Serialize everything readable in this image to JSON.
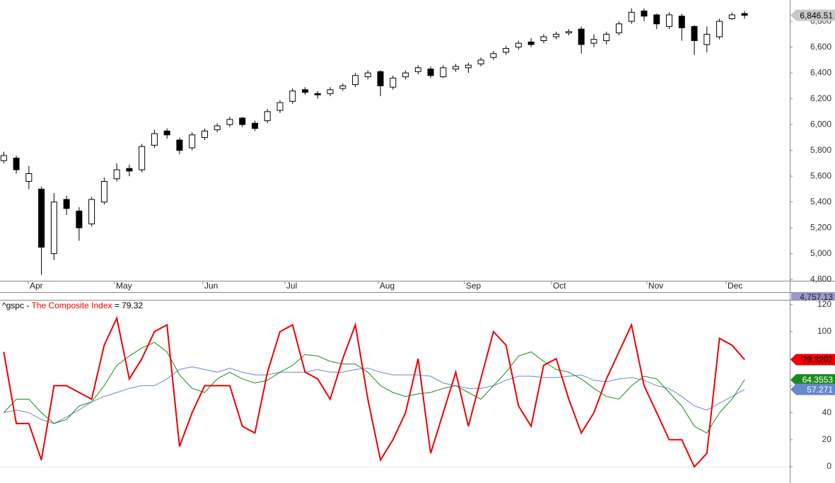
{
  "chart_data": [
    {
      "type": "candlestick",
      "open": [
        5720,
        5740,
        5560,
        5500,
        5000,
        5420,
        5330,
        5230,
        5400,
        5580,
        5660,
        5650,
        5840,
        5950,
        5880,
        5820,
        5900,
        5960,
        6000,
        6050,
        6010,
        6030,
        6110,
        6180,
        6270,
        6240,
        6240,
        6280,
        6310,
        6370,
        6410,
        6290,
        6370,
        6410,
        6430,
        6370,
        6430,
        6440,
        6470,
        6520,
        6560,
        6600,
        6640,
        6650,
        6680,
        6710,
        6740,
        6630,
        6650,
        6710,
        6800,
        6880,
        6850,
        6760,
        6840,
        6760,
        6620,
        6680,
        6820,
        6860
      ],
      "high": [
        5790,
        5760,
        5680,
        5520,
        5470,
        5450,
        5360,
        5440,
        5590,
        5700,
        5690,
        5850,
        5960,
        5970,
        5900,
        5940,
        5970,
        6010,
        6060,
        6060,
        6030,
        6120,
        6190,
        6280,
        6290,
        6260,
        6290,
        6320,
        6400,
        6420,
        6420,
        6380,
        6420,
        6460,
        6450,
        6460,
        6470,
        6480,
        6520,
        6570,
        6610,
        6650,
        6670,
        6700,
        6720,
        6740,
        6760,
        6700,
        6720,
        6800,
        6900,
        6900,
        6860,
        6870,
        6860,
        6770,
        6760,
        6820,
        6870,
        6880
      ],
      "low": [
        5700,
        5620,
        5500,
        4835,
        4950,
        5300,
        5100,
        5210,
        5380,
        5560,
        5600,
        5630,
        5820,
        5890,
        5770,
        5800,
        5880,
        5940,
        5980,
        5980,
        5950,
        6010,
        6090,
        6160,
        6230,
        6200,
        6220,
        6260,
        6290,
        6350,
        6220,
        6270,
        6350,
        6390,
        6360,
        6360,
        6410,
        6400,
        6450,
        6500,
        6540,
        6580,
        6600,
        6630,
        6660,
        6690,
        6550,
        6600,
        6620,
        6690,
        6780,
        6800,
        6740,
        6740,
        6650,
        6540,
        6560,
        6660,
        6810,
        6820
      ],
      "close": [
        5760,
        5650,
        5620,
        5050,
        5400,
        5350,
        5200,
        5420,
        5560,
        5650,
        5640,
        5830,
        5930,
        5920,
        5800,
        5920,
        5950,
        5990,
        6040,
        6000,
        5970,
        6100,
        6170,
        6260,
        6250,
        6230,
        6270,
        6300,
        6380,
        6400,
        6300,
        6360,
        6400,
        6440,
        6380,
        6440,
        6450,
        6460,
        6500,
        6550,
        6590,
        6630,
        6620,
        6680,
        6700,
        6720,
        6620,
        6660,
        6700,
        6780,
        6870,
        6840,
        6780,
        6850,
        6750,
        6650,
        6700,
        6800,
        6850,
        6846.51
      ],
      "xlim": [
        -0.3,
        62.6
      ],
      "xticks": [
        {
          "value": 1.95,
          "label": "Apr"
        },
        {
          "value": 8.82,
          "label": "May"
        },
        {
          "value": 15.86,
          "label": "Jun"
        },
        {
          "value": 22.39,
          "label": "Jul"
        },
        {
          "value": 29.82,
          "label": "Aug"
        },
        {
          "value": 36.69,
          "label": "Sep"
        },
        {
          "value": 43.62,
          "label": "Oct"
        },
        {
          "value": 51.22,
          "label": "Nov"
        },
        {
          "value": 57.53,
          "label": "Dec"
        }
      ],
      "ylim": [
        4790,
        6965
      ],
      "yticks": [
        {
          "value": 4800,
          "label": "4,800"
        },
        {
          "value": 5000,
          "label": "5,000"
        },
        {
          "value": 5200,
          "label": "5,200"
        },
        {
          "value": 5400,
          "label": "5,400"
        },
        {
          "value": 5600,
          "label": "5,600"
        },
        {
          "value": 5800,
          "label": "5,800"
        },
        {
          "value": 6000,
          "label": "6,000"
        },
        {
          "value": 6200,
          "label": "6,200"
        },
        {
          "value": 6400,
          "label": "6,400"
        },
        {
          "value": 6600,
          "label": "6,600"
        },
        {
          "value": {
            "value": 6800,
            "label": "6,800"
          }
        }
      ],
      "last_label": "6,846.51",
      "low_label": "4,757.13"
    },
    {
      "type": "line",
      "title_parts": [
        "^gspc - ",
        "The Composite Index",
        " = 79.32"
      ],
      "series": [
        {
          "color": "#ee0000",
          "values": [
            85,
            32,
            32,
            5,
            60,
            60,
            55,
            50,
            90,
            110,
            65,
            80,
            100,
            105,
            15,
            40,
            60,
            60,
            60,
            30,
            25,
            70,
            100,
            105,
            70,
            65,
            50,
            80,
            105,
            50,
            5,
            20,
            40,
            80,
            10,
            40,
            70,
            30,
            65,
            100,
            90,
            45,
            30,
            75,
            80,
            50,
            25,
            40,
            65,
            85,
            105,
            60,
            40,
            20,
            20,
            0,
            10,
            95,
            90,
            79.32
          ],
          "last_label": "79.3202",
          "width": 2
        },
        {
          "color": "#1a8c1a",
          "values": [
            40,
            50,
            50,
            40,
            32,
            35,
            45,
            48,
            60,
            75,
            82,
            88,
            92,
            85,
            68,
            58,
            55,
            65,
            70,
            65,
            62,
            64,
            70,
            75,
            83,
            82,
            78,
            76,
            76,
            70,
            60,
            55,
            52,
            54,
            55,
            58,
            60,
            55,
            50,
            60,
            70,
            82,
            85,
            78,
            72,
            70,
            65,
            58,
            52,
            50,
            60,
            67,
            65,
            55,
            45,
            30,
            25,
            40,
            50,
            64.3553
          ],
          "last_label": "64.3553",
          "width": 1
        },
        {
          "color": "#6688cc",
          "values": [
            40,
            42,
            40,
            35,
            32,
            37,
            42,
            48,
            52,
            55,
            58,
            60,
            60,
            65,
            72,
            74,
            72,
            70,
            73,
            70,
            68,
            68,
            70,
            70,
            70,
            72,
            70,
            70,
            72,
            73,
            70,
            68,
            68,
            68,
            67,
            62,
            60,
            58,
            58,
            60,
            64,
            67,
            67,
            66,
            66,
            67,
            68,
            64,
            63,
            65,
            66,
            64,
            60,
            58,
            52,
            45,
            42,
            47,
            52,
            57.271
          ],
          "last_label": "57.271",
          "width": 1
        }
      ],
      "ylim": [
        -12,
        123
      ],
      "yticks": [
        0,
        20,
        40,
        60,
        80,
        100,
        120
      ]
    }
  ]
}
